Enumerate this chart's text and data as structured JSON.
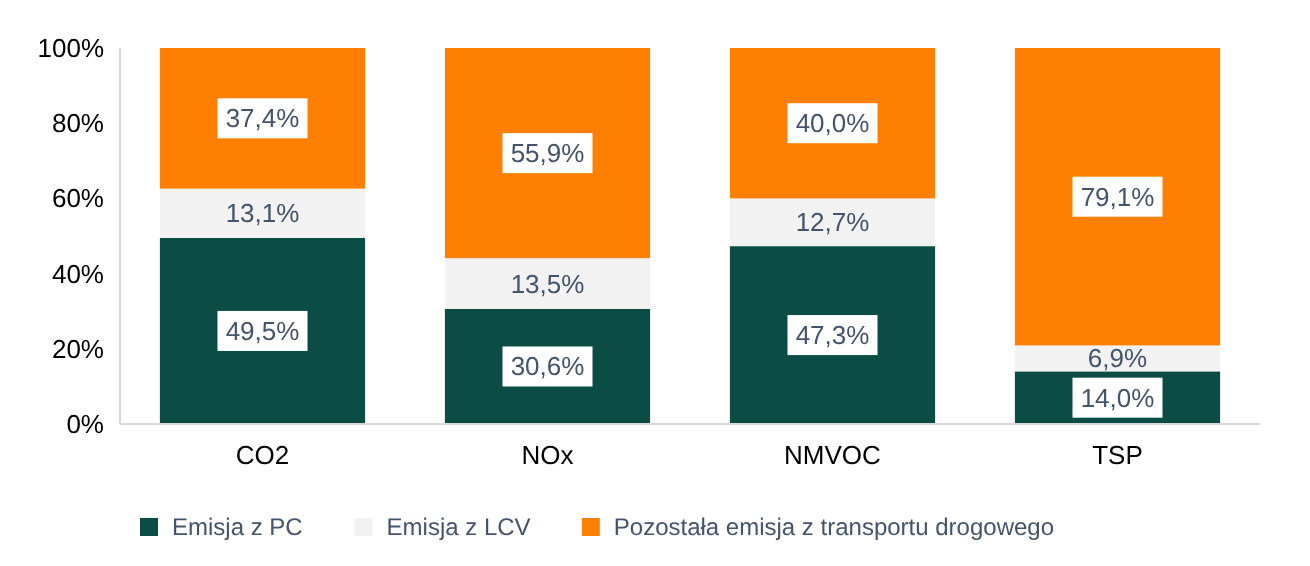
{
  "chart_data": {
    "type": "bar",
    "stacked": true,
    "categories": [
      "CO2",
      "NOx",
      "NMVOC",
      "TSP"
    ],
    "series": [
      {
        "name": "Emisja z PC",
        "color": "#0b4d45",
        "values": [
          49.5,
          30.6,
          47.3,
          14.0
        ],
        "value_labels": [
          "49,5%",
          "30,6%",
          "47,3%",
          "14,0%"
        ]
      },
      {
        "name": "Emisja z LCV",
        "color": "#f2f2f2",
        "values": [
          13.1,
          13.5,
          12.7,
          6.9
        ],
        "value_labels": [
          "13,1%",
          "13,5%",
          "12,7%",
          "6,9%"
        ]
      },
      {
        "name": "Pozostała emisja z transportu drogowego",
        "color": "#ff8000",
        "values": [
          37.4,
          55.9,
          40.0,
          79.1
        ],
        "value_labels": [
          "37,4%",
          "55,9%",
          "40,0%",
          "79,1%"
        ]
      }
    ],
    "ylim": [
      0,
      100
    ],
    "yticks": [
      {
        "value": 0,
        "label": "0%"
      },
      {
        "value": 20,
        "label": "20%"
      },
      {
        "value": 40,
        "label": "40%"
      },
      {
        "value": 60,
        "label": "60%"
      },
      {
        "value": 80,
        "label": "80%"
      },
      {
        "value": 100,
        "label": "100%"
      }
    ],
    "legend": "bottom"
  }
}
